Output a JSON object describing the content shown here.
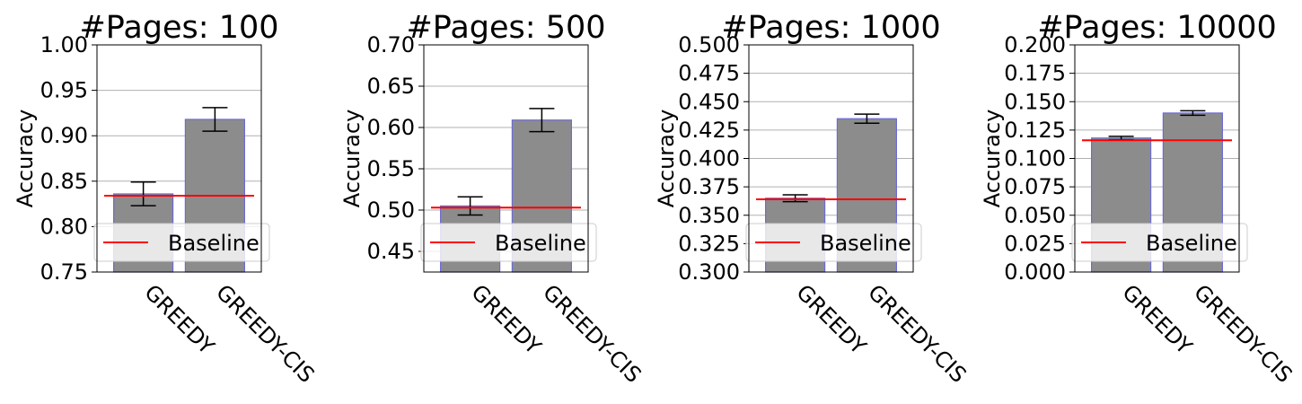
{
  "colors": {
    "bar_fill": "#8c8c8c",
    "bar_edge": "#6b6bd6",
    "baseline": "#ff0000",
    "errorbar": "#000000",
    "grid": "#b0b0b0",
    "legend_bg": "#ffffff"
  },
  "chart_data": [
    {
      "type": "bar",
      "title": "#Pages: 100",
      "ylabel": "Accuracy",
      "categories": [
        "GREEDY",
        "GREEDY-CIS"
      ],
      "values": [
        0.836,
        0.918
      ],
      "errors": [
        0.013,
        0.013
      ],
      "baseline": 0.834,
      "ylim": [
        0.75,
        1.0
      ],
      "yticks": [
        "0.75",
        "0.80",
        "0.85",
        "0.90",
        "0.95",
        "1.00"
      ],
      "legend": [
        "Baseline"
      ],
      "legend_position": "lower center",
      "grid": "y"
    },
    {
      "type": "bar",
      "title": "#Pages: 500",
      "ylabel": "Accuracy",
      "categories": [
        "GREEDY",
        "GREEDY-CIS"
      ],
      "values": [
        0.505,
        0.609
      ],
      "errors": [
        0.011,
        0.014
      ],
      "baseline": 0.503,
      "ylim": [
        0.425,
        0.7
      ],
      "yticks": [
        "0.45",
        "0.50",
        "0.55",
        "0.60",
        "0.65",
        "0.70"
      ],
      "legend": [
        "Baseline"
      ],
      "legend_position": "lower center",
      "grid": "y"
    },
    {
      "type": "bar",
      "title": "#Pages: 1000",
      "ylabel": "Accuracy",
      "categories": [
        "GREEDY",
        "GREEDY-CIS"
      ],
      "values": [
        0.365,
        0.435
      ],
      "errors": [
        0.003,
        0.004
      ],
      "baseline": 0.364,
      "ylim": [
        0.3,
        0.5
      ],
      "yticks": [
        "0.300",
        "0.325",
        "0.350",
        "0.375",
        "0.400",
        "0.425",
        "0.450",
        "0.475",
        "0.500"
      ],
      "legend": [
        "Baseline"
      ],
      "legend_position": "lower center",
      "grid": "y"
    },
    {
      "type": "bar",
      "title": "#Pages: 10000",
      "ylabel": "Accuracy",
      "categories": [
        "GREEDY",
        "GREEDY-CIS"
      ],
      "values": [
        0.118,
        0.14
      ],
      "errors": [
        0.0015,
        0.002
      ],
      "baseline": 0.116,
      "ylim": [
        0.0,
        0.2
      ],
      "yticks": [
        "0.000",
        "0.025",
        "0.050",
        "0.075",
        "0.100",
        "0.125",
        "0.150",
        "0.175",
        "0.200"
      ],
      "legend": [
        "Baseline"
      ],
      "legend_position": "lower center",
      "grid": "y"
    }
  ]
}
